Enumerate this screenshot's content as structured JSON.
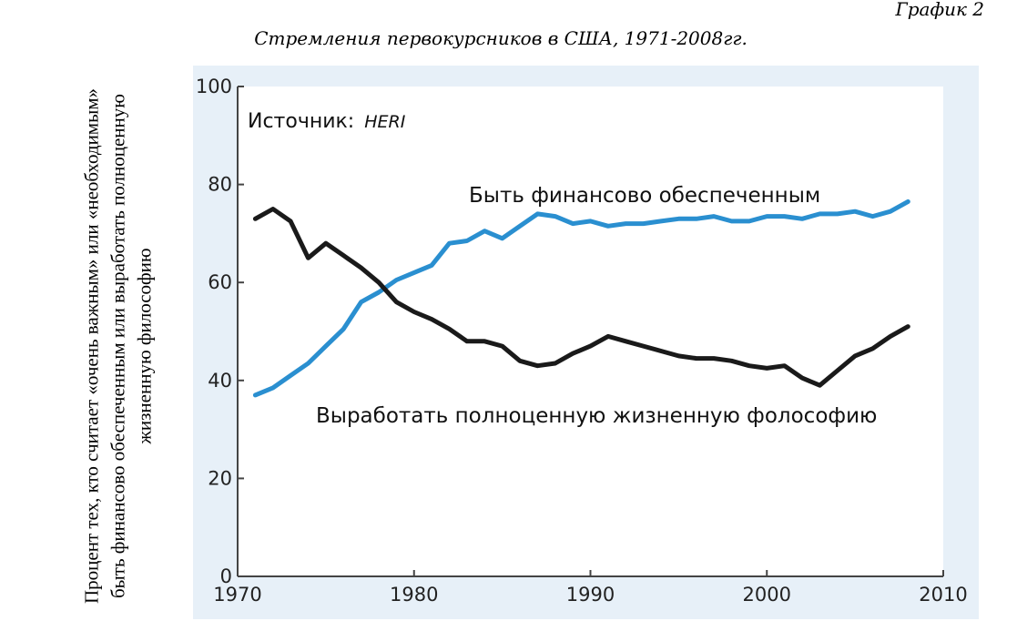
{
  "figure_label": "График 2",
  "chart_data": {
    "type": "line",
    "title": "Стремления первокурсников в США, 1971-2008гг.",
    "ylabel": "Процент тех, кто считает «очень важным» или «необходимым» быть финансово обеспеченным или выработать полноценную жизненную философию",
    "xlabel": "",
    "xlim": [
      1970,
      2010
    ],
    "ylim": [
      0,
      100
    ],
    "xticks": [
      1970,
      1980,
      1990,
      2000,
      2010
    ],
    "yticks": [
      0,
      20,
      40,
      60,
      80,
      100
    ],
    "grid": false,
    "source_label": "Источник:",
    "source_name": "HERI",
    "series": [
      {
        "name": "Быть финансово обеспеченным",
        "color": "#2a8fd0",
        "x": [
          1971,
          1972,
          1973,
          1974,
          1975,
          1976,
          1977,
          1978,
          1979,
          1980,
          1981,
          1982,
          1983,
          1984,
          1985,
          1986,
          1987,
          1988,
          1989,
          1990,
          1991,
          1992,
          1993,
          1994,
          1995,
          1996,
          1997,
          1998,
          1999,
          2000,
          2001,
          2002,
          2003,
          2004,
          2005,
          2006,
          2007,
          2008
        ],
        "y": [
          37,
          38.5,
          41,
          43.5,
          47,
          50.5,
          56,
          58,
          60.5,
          62,
          63.5,
          68,
          68.5,
          70.5,
          69,
          71.5,
          74,
          73.5,
          72,
          72.5,
          71.5,
          72,
          72,
          72.5,
          73,
          73,
          73.5,
          72.5,
          72.5,
          73.5,
          73.5,
          73,
          74,
          74,
          74.5,
          73.5,
          74.5,
          76.5
        ]
      },
      {
        "name": "Выработать полноценную жизненную фолософию",
        "color": "#1a1a1a",
        "x": [
          1971,
          1972,
          1973,
          1974,
          1975,
          1976,
          1977,
          1978,
          1979,
          1980,
          1981,
          1982,
          1983,
          1984,
          1985,
          1986,
          1987,
          1988,
          1989,
          1990,
          1991,
          1992,
          1993,
          1994,
          1995,
          1996,
          1997,
          1998,
          1999,
          2000,
          2001,
          2002,
          2003,
          2004,
          2005,
          2006,
          2007,
          2008
        ],
        "y": [
          73,
          75,
          72.5,
          65,
          68,
          65.5,
          63,
          60,
          56,
          54,
          52.5,
          50.5,
          48,
          48,
          47,
          44,
          43,
          43.5,
          45.5,
          47,
          49,
          48,
          47,
          46,
          45,
          44.5,
          44.5,
          44,
          43,
          42.5,
          43,
          40.5,
          39,
          42,
          45,
          46.5,
          49,
          51
        ]
      }
    ]
  }
}
